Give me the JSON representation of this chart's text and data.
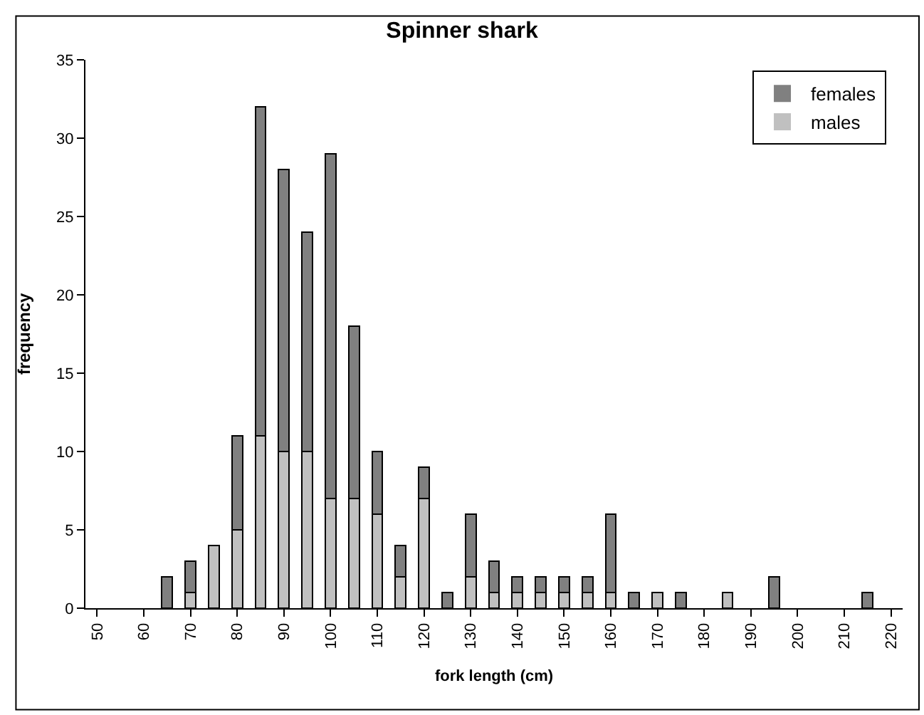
{
  "chart_data": {
    "type": "bar",
    "title": "Spinner shark",
    "xlabel": "fork length (cm)",
    "ylabel": "frequency",
    "categories": [
      "50",
      null,
      "60",
      null,
      "70",
      null,
      "80",
      null,
      "90",
      null,
      "100",
      null,
      "110",
      null,
      "120",
      null,
      "130",
      null,
      "140",
      null,
      "150",
      null,
      "160",
      null,
      "170",
      null,
      "180",
      null,
      "190",
      null,
      "200",
      null,
      "210",
      null,
      "220"
    ],
    "stacked": true,
    "series": [
      {
        "name": "males",
        "color": "#c0c0c0",
        "values": [
          0,
          0,
          0,
          0,
          1,
          4,
          5,
          11,
          10,
          10,
          7,
          7,
          6,
          2,
          7,
          0,
          2,
          1,
          1,
          1,
          1,
          1,
          1,
          0,
          1,
          0,
          0,
          1,
          0,
          0,
          0,
          0,
          0,
          0,
          0
        ]
      },
      {
        "name": "females",
        "color": "#808080",
        "values": [
          0,
          0,
          0,
          2,
          2,
          0,
          6,
          21,
          18,
          14,
          22,
          11,
          4,
          2,
          2,
          1,
          4,
          2,
          1,
          1,
          1,
          1,
          5,
          1,
          0,
          1,
          0,
          0,
          0,
          2,
          0,
          0,
          0,
          1,
          0
        ]
      }
    ],
    "ylim": [
      0,
      35
    ],
    "yticks": [
      0,
      5,
      10,
      15,
      20,
      25,
      30,
      35
    ],
    "legend": "top right"
  }
}
